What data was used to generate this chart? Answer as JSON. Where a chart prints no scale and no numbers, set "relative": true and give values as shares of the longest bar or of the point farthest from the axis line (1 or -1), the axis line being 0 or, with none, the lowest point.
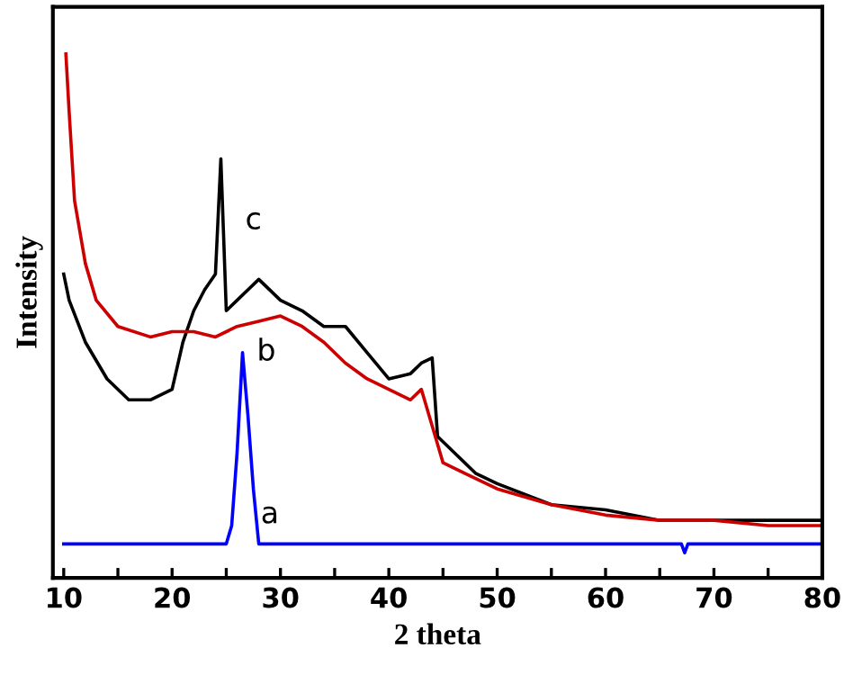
{
  "chart_data": {
    "type": "line",
    "relative": true,
    "xlabel": "2 theta",
    "ylabel": "Intensity",
    "xlim": [
      9,
      80
    ],
    "xticks": [
      10,
      {
        "value": 15,
        "label": null
      },
      20,
      {
        "value": 25,
        "label": null
      },
      30,
      {
        "value": 35,
        "label": null
      },
      40,
      {
        "value": 45,
        "label": null
      },
      50,
      {
        "value": 55,
        "label": null
      },
      60,
      {
        "value": 65,
        "label": null
      },
      70,
      {
        "value": 75,
        "label": null
      },
      80
    ],
    "grid": false,
    "legend": false,
    "marker": "none",
    "line_style": "solid",
    "series": [
      {
        "name": "a",
        "color": "#0000ff",
        "x": [
          10,
          25,
          25.5,
          26,
          26.5,
          27,
          27.5,
          28,
          67,
          67.3,
          67.6,
          80
        ],
        "values": [
          0.065,
          0.065,
          0.1,
          0.24,
          0.43,
          0.31,
          0.17,
          0.065,
          0.065,
          0.048,
          0.065,
          0.065
        ]
      },
      {
        "name": "c",
        "color": "#000000",
        "x": [
          10,
          10.5,
          12,
          14,
          16,
          18,
          20,
          21,
          22,
          23,
          24,
          24.5,
          25,
          26,
          27,
          28,
          30,
          32,
          34,
          36,
          38,
          40,
          42,
          43,
          44,
          44.5,
          46,
          48,
          50,
          55,
          60,
          65,
          70,
          75,
          80
        ],
        "values": [
          0.58,
          0.53,
          0.45,
          0.38,
          0.34,
          0.34,
          0.36,
          0.45,
          0.51,
          0.55,
          0.58,
          0.8,
          0.51,
          0.53,
          0.55,
          0.57,
          0.53,
          0.51,
          0.48,
          0.48,
          0.43,
          0.38,
          0.39,
          0.41,
          0.42,
          0.27,
          0.24,
          0.2,
          0.18,
          0.14,
          0.13,
          0.11,
          0.11,
          0.11,
          0.11
        ]
      },
      {
        "name": "b",
        "color": "#cc0000",
        "x": [
          10.2,
          10.5,
          11,
          12,
          13,
          15,
          18,
          20,
          22,
          24,
          26,
          28,
          30,
          32,
          34,
          36,
          38,
          40,
          42,
          43,
          44,
          45,
          47,
          50,
          55,
          60,
          65,
          70,
          75,
          80
        ],
        "values": [
          1.0,
          0.89,
          0.72,
          0.6,
          0.53,
          0.48,
          0.46,
          0.47,
          0.47,
          0.46,
          0.48,
          0.49,
          0.5,
          0.48,
          0.45,
          0.41,
          0.38,
          0.36,
          0.34,
          0.36,
          0.29,
          0.22,
          0.2,
          0.17,
          0.14,
          0.12,
          0.11,
          0.11,
          0.1,
          0.1
        ]
      }
    ]
  }
}
